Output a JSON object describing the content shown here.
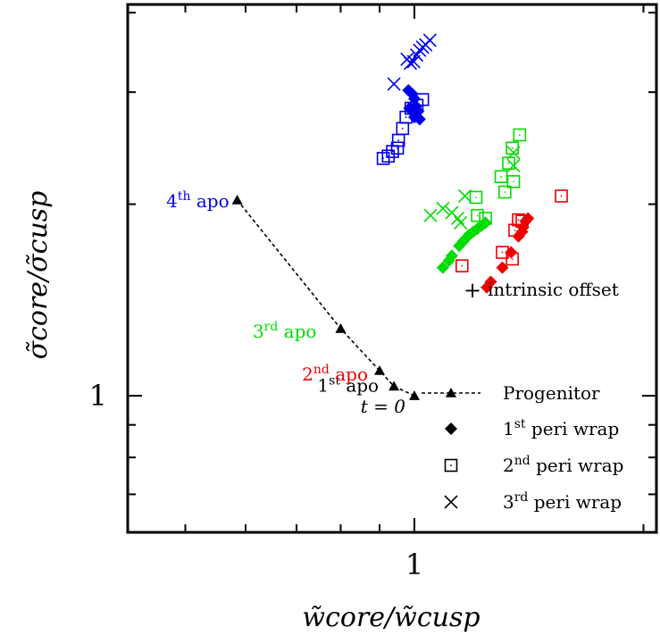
{
  "chart_data": {
    "type": "scatter",
    "title": "",
    "xlabel": "w̃core/w̃cusp",
    "ylabel": "σ̃core/σ̃cusp",
    "x_scale": "log",
    "y_scale": "log",
    "xlim": [
      0.42,
      2.08
    ],
    "ylim": [
      0.61,
      4.12
    ],
    "xticks": [
      {
        "value": 1,
        "label": "1"
      }
    ],
    "yticks": [
      {
        "value": 1,
        "label": "1"
      }
    ],
    "legend_position": "bottom-right",
    "legend": [
      {
        "sup_prefix": "",
        "sup": "",
        "text": "Progenitor",
        "marker": "line-triangle"
      },
      {
        "sup_prefix": "1",
        "sup": "st",
        "text": " peri wrap",
        "marker": "diamond"
      },
      {
        "sup_prefix": "2",
        "sup": "nd",
        "text": " peri wrap",
        "marker": "square-dot"
      },
      {
        "sup_prefix": "3",
        "sup": "rd",
        "text": " peri wrap",
        "marker": "cross"
      }
    ],
    "offset_note": {
      "symbol": "+",
      "text": "intrinsic offset"
    },
    "colors": {
      "black": "#000000",
      "blue": "#0000ee",
      "green": "#00dd00",
      "red": "#ee0000"
    },
    "series": [
      {
        "marker": "triangle",
        "line": "dashed",
        "points": [
          {
            "x": 1.0,
            "y": 1.0,
            "pre": "",
            "sup": "",
            "post": "",
            "label": "t = 0",
            "color": "black"
          },
          {
            "x": 0.94,
            "y": 1.035,
            "pre": "1",
            "sup": "st",
            "post": " apo",
            "label": "",
            "color": "black"
          },
          {
            "x": 0.9,
            "y": 1.095,
            "pre": "2",
            "sup": "nd",
            "post": " apo",
            "label": "",
            "color": "red"
          },
          {
            "x": 0.8,
            "y": 1.275,
            "pre": "3",
            "sup": "rd",
            "post": " apo",
            "label": "",
            "color": "green"
          },
          {
            "x": 0.585,
            "y": 2.03,
            "pre": "4",
            "sup": "th",
            "post": " apo",
            "label": "",
            "color": "blue"
          }
        ]
      },
      {
        "name": "blue",
        "color": "blue",
        "diamond": [
          [
            0.982,
            3.02
          ],
          [
            0.994,
            2.98
          ],
          [
            1.0,
            2.93
          ],
          [
            1.005,
            2.85
          ],
          [
            0.985,
            2.83
          ],
          [
            0.995,
            2.79
          ],
          [
            1.012,
            2.8
          ],
          [
            1.0,
            2.74
          ],
          [
            1.016,
            2.72
          ]
        ],
        "square": [
          [
            0.91,
            2.36
          ],
          [
            0.924,
            2.38
          ],
          [
            0.936,
            2.42
          ],
          [
            0.95,
            2.45
          ],
          [
            0.953,
            2.52
          ],
          [
            0.965,
            2.63
          ],
          [
            0.975,
            2.74
          ],
          [
            0.99,
            2.83
          ],
          [
            1.008,
            2.86
          ],
          [
            1.025,
            2.92
          ]
        ],
        "cross": [
          [
            0.94,
            3.09
          ],
          [
            0.978,
            3.38
          ],
          [
            0.988,
            3.33
          ],
          [
            0.998,
            3.35
          ],
          [
            1.007,
            3.43
          ],
          [
            1.016,
            3.49
          ],
          [
            1.025,
            3.53
          ],
          [
            1.035,
            3.56
          ],
          [
            1.048,
            3.62
          ]
        ]
      },
      {
        "name": "green",
        "color": "green",
        "diamond": [
          [
            1.09,
            1.59
          ],
          [
            1.11,
            1.63
          ],
          [
            1.12,
            1.66
          ],
          [
            1.145,
            1.72
          ],
          [
            1.16,
            1.75
          ],
          [
            1.17,
            1.77
          ],
          [
            1.18,
            1.79
          ],
          [
            1.195,
            1.81
          ],
          [
            1.21,
            1.83
          ],
          [
            1.225,
            1.85
          ],
          [
            1.24,
            1.87
          ]
        ],
        "square": [
          [
            1.21,
            1.92
          ],
          [
            1.205,
            2.05
          ],
          [
            1.24,
            1.9
          ],
          [
            1.3,
            2.21
          ],
          [
            1.33,
            2.32
          ],
          [
            1.345,
            2.45
          ],
          [
            1.35,
            2.17
          ],
          [
            1.315,
            2.09
          ],
          [
            1.375,
            2.57
          ]
        ],
        "cross": [
          [
            1.05,
            1.92
          ],
          [
            1.09,
            1.97
          ],
          [
            1.12,
            1.94
          ],
          [
            1.14,
            1.9
          ],
          [
            1.15,
            1.87
          ],
          [
            1.165,
            2.06
          ],
          [
            1.35,
            2.3
          ],
          [
            1.35,
            2.41
          ]
        ]
      },
      {
        "name": "red",
        "color": "red",
        "diamond": [
          [
            1.245,
            1.48
          ],
          [
            1.26,
            1.51
          ],
          [
            1.305,
            1.59
          ],
          [
            1.34,
            1.68
          ],
          [
            1.37,
            1.78
          ],
          [
            1.385,
            1.81
          ],
          [
            1.39,
            1.84
          ],
          [
            1.4,
            1.88
          ],
          [
            1.41,
            1.9
          ]
        ],
        "square": [
          [
            1.155,
            1.6
          ],
          [
            1.305,
            1.68
          ],
          [
            1.345,
            1.64
          ],
          [
            1.355,
            1.82
          ],
          [
            1.37,
            1.89
          ],
          [
            1.385,
            1.88
          ],
          [
            1.56,
            2.06
          ]
        ],
        "cross": []
      }
    ]
  }
}
